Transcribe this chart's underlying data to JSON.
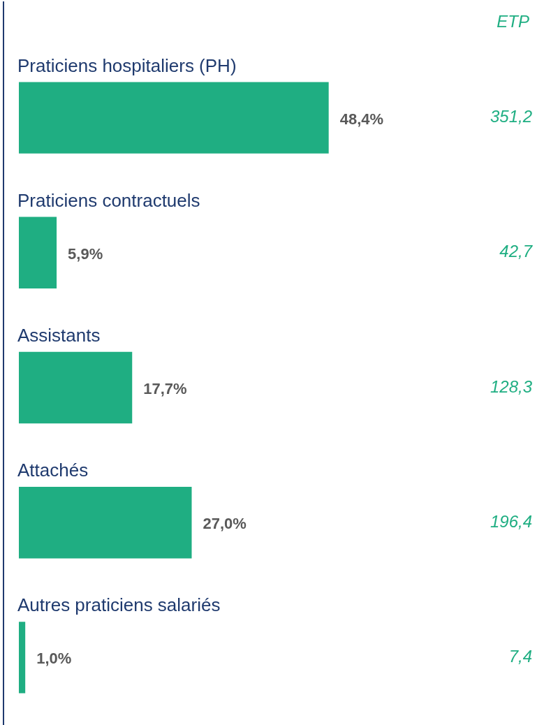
{
  "chart_data": {
    "type": "bar",
    "orientation": "horizontal",
    "categories": [
      "Praticiens hospitaliers (PH)",
      "Praticiens contractuels",
      "Assistants",
      "Attachés",
      "Autres praticiens salariés"
    ],
    "values": [
      48.4,
      5.9,
      17.7,
      27.0,
      1.0
    ],
    "color": "#1fae82",
    "value_labels": [
      "48,4%",
      "5,9%",
      "17,7%",
      "27,0%",
      "1,0%"
    ],
    "annotations": [
      "ETP",
      "351,2",
      "42,7",
      "128,3",
      "196,4",
      "7,4"
    ],
    "grid": false,
    "legend": false
  }
}
